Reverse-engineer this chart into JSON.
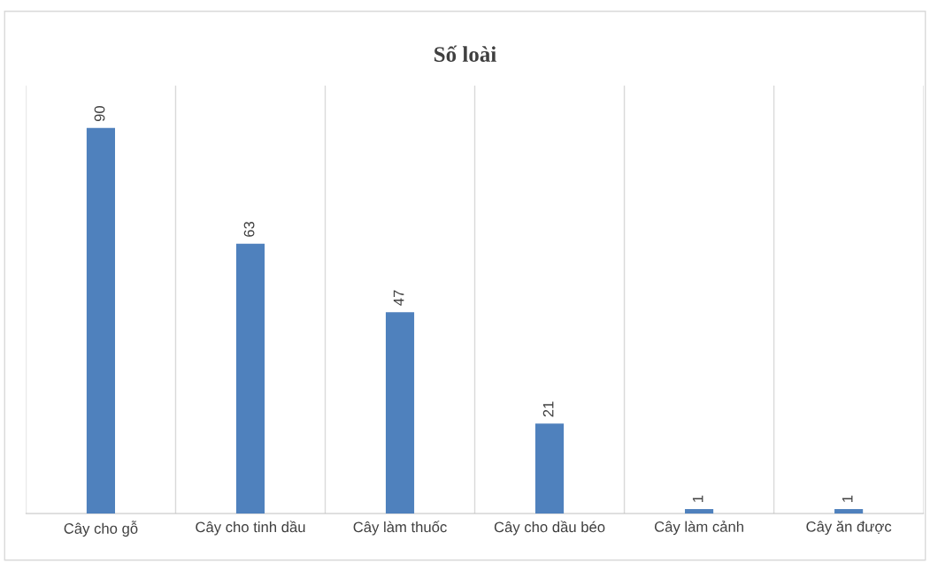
{
  "chart_data": {
    "type": "bar",
    "title": "Số loài",
    "categories": [
      "Cây cho gỗ",
      "Cây cho tinh dầu",
      "Cây làm thuốc",
      "Cây cho dầu béo",
      "Cây làm cảnh",
      "Cây ăn được"
    ],
    "values": [
      90,
      63,
      47,
      21,
      1,
      1
    ],
    "color": "#4f81bd",
    "data_labels": true,
    "grid": "x"
  }
}
